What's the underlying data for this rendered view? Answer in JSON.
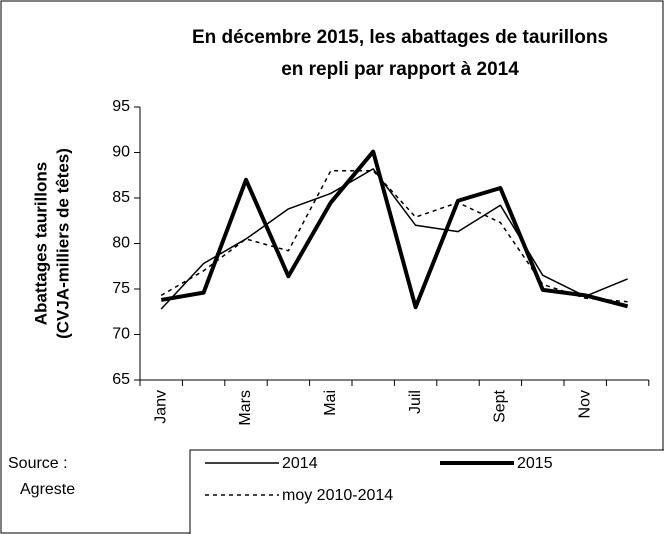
{
  "chart_data": {
    "type": "line",
    "title": [
      "En décembre 2015, les abattages de taurillons",
      "en repli par rapport à 2014"
    ],
    "y_label": [
      "Abattages taurillons",
      "(CVJA-milliers de têtes)"
    ],
    "source": [
      "Source :",
      "Agreste"
    ],
    "categories": [
      "Janv",
      null,
      "Mars",
      null,
      "Mai",
      null,
      "Juil",
      null,
      "Sept",
      null,
      "Nov",
      null
    ],
    "series": [
      {
        "name": "2014",
        "color": "#000000",
        "width": 1.5,
        "dash": "none",
        "values": [
          72.8,
          77.8,
          80.5,
          83.8,
          85.5,
          88.2,
          82.0,
          81.3,
          84.2,
          76.5,
          74.2,
          76.1
        ]
      },
      {
        "name": "2015",
        "color": "#000000",
        "width": 4,
        "dash": "none",
        "values": [
          73.8,
          74.6,
          87.0,
          76.4,
          84.5,
          90.1,
          73.0,
          84.7,
          86.1,
          74.9,
          74.3,
          73.1
        ]
      },
      {
        "name": "moy 2010-2014",
        "color": "#000000",
        "width": 1.5,
        "dash": "4 4",
        "values": [
          74.3,
          77.0,
          80.5,
          79.2,
          88.0,
          88.0,
          82.9,
          84.5,
          82.3,
          75.5,
          74.0,
          73.6
        ]
      }
    ],
    "ylim": [
      65,
      95
    ],
    "yticks": [
      65,
      70,
      75,
      80,
      85,
      90,
      95
    ]
  }
}
